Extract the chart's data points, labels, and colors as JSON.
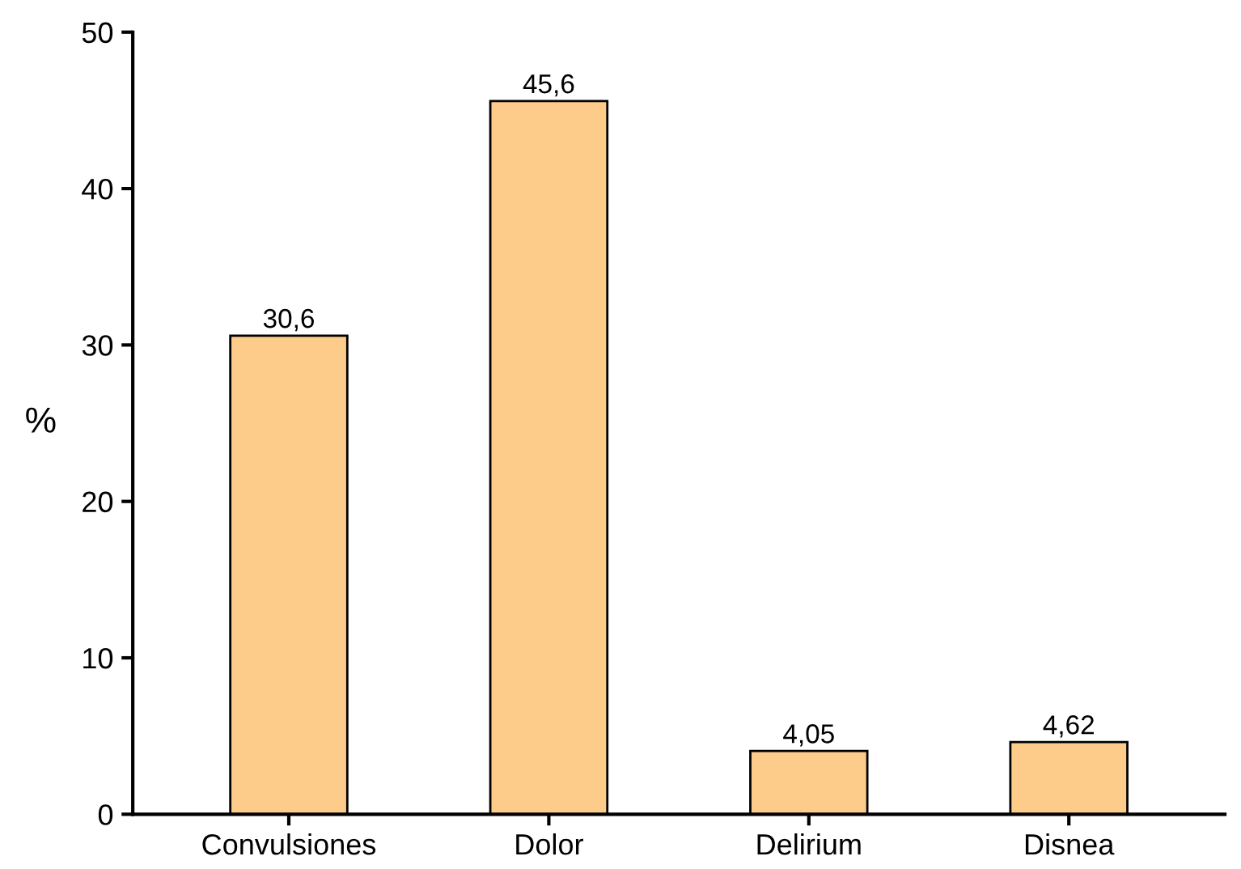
{
  "chart_data": {
    "type": "bar",
    "ylabel": "%",
    "categories": [
      "Convulsiones",
      "Dolor",
      "Delirium",
      "Disnea"
    ],
    "values": [
      30.6,
      45.6,
      4.05,
      4.62
    ],
    "value_labels": [
      "30,6",
      "45,6",
      "4,05",
      "4,62"
    ],
    "color": "#fdcc8a",
    "ylim": [
      0,
      50
    ],
    "yticks": [
      0,
      10,
      20,
      30,
      40,
      50
    ],
    "grid": false,
    "legend": false
  }
}
